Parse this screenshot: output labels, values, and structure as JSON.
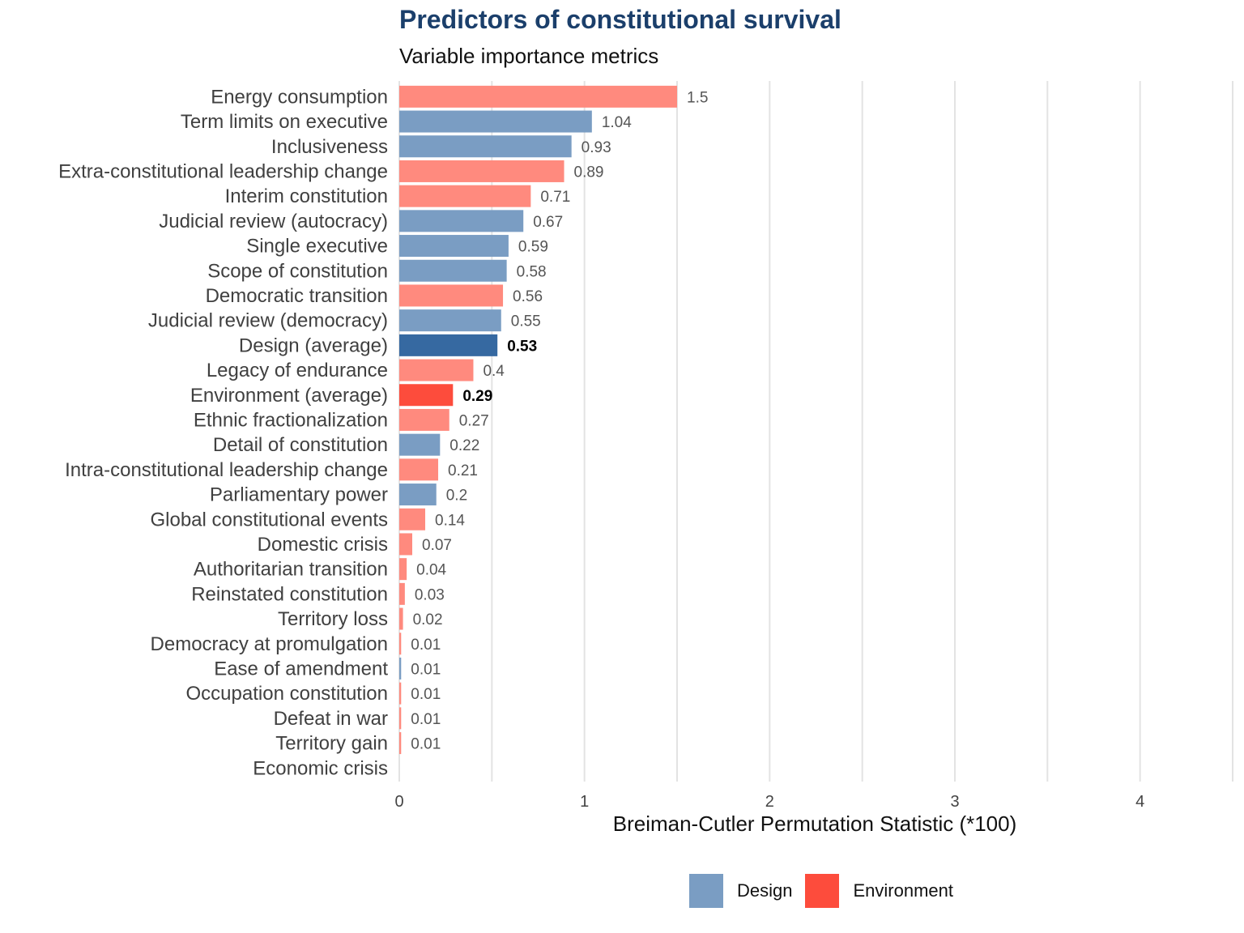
{
  "title": "Predictors of constitutional survival",
  "subtitle": "Variable importance metrics",
  "colors": {
    "design": "#7a9dc3",
    "design_highlight": "#3669a1",
    "environment": "#ff8a7e",
    "environment_highlight": "#fd4c3c",
    "grid": "#e3e3e3",
    "label": "#404040",
    "value_label": "#555555"
  },
  "legend": {
    "items": [
      {
        "label": "Design",
        "group": "design"
      },
      {
        "label": "Environment",
        "group": "environment"
      }
    ]
  },
  "chart_data": {
    "type": "bar",
    "orientation": "horizontal",
    "xlabel": "Breiman-Cutler Permutation Statistic (*100)",
    "xlim": [
      0,
      4.5
    ],
    "xticks": [
      0,
      1,
      2,
      3,
      4
    ],
    "grid": true,
    "legend_position": "bottom",
    "bars": [
      {
        "label": "Energy consumption",
        "value": 1.5,
        "value_label": "1.5",
        "group": "environment",
        "highlight": false
      },
      {
        "label": "Term limits on executive",
        "value": 1.04,
        "value_label": "1.04",
        "group": "design",
        "highlight": false
      },
      {
        "label": "Inclusiveness",
        "value": 0.93,
        "value_label": "0.93",
        "group": "design",
        "highlight": false
      },
      {
        "label": "Extra-constitutional leadership change",
        "value": 0.89,
        "value_label": "0.89",
        "group": "environment",
        "highlight": false
      },
      {
        "label": "Interim constitution",
        "value": 0.71,
        "value_label": "0.71",
        "group": "environment",
        "highlight": false
      },
      {
        "label": "Judicial review (autocracy)",
        "value": 0.67,
        "value_label": "0.67",
        "group": "design",
        "highlight": false
      },
      {
        "label": "Single executive",
        "value": 0.59,
        "value_label": "0.59",
        "group": "design",
        "highlight": false
      },
      {
        "label": "Scope of constitution",
        "value": 0.58,
        "value_label": "0.58",
        "group": "design",
        "highlight": false
      },
      {
        "label": "Democratic transition",
        "value": 0.56,
        "value_label": "0.56",
        "group": "environment",
        "highlight": false
      },
      {
        "label": "Judicial review (democracy)",
        "value": 0.55,
        "value_label": "0.55",
        "group": "design",
        "highlight": false
      },
      {
        "label": "Design (average)",
        "value": 0.53,
        "value_label": "0.53",
        "group": "design",
        "highlight": true
      },
      {
        "label": "Legacy of endurance",
        "value": 0.4,
        "value_label": "0.4",
        "group": "environment",
        "highlight": false
      },
      {
        "label": "Environment (average)",
        "value": 0.29,
        "value_label": "0.29",
        "group": "environment",
        "highlight": true
      },
      {
        "label": "Ethnic fractionalization",
        "value": 0.27,
        "value_label": "0.27",
        "group": "environment",
        "highlight": false
      },
      {
        "label": "Detail of constitution",
        "value": 0.22,
        "value_label": "0.22",
        "group": "design",
        "highlight": false
      },
      {
        "label": "Intra-constitutional leadership change",
        "value": 0.21,
        "value_label": "0.21",
        "group": "environment",
        "highlight": false
      },
      {
        "label": "Parliamentary power",
        "value": 0.2,
        "value_label": "0.2",
        "group": "design",
        "highlight": false
      },
      {
        "label": "Global constitutional events",
        "value": 0.14,
        "value_label": "0.14",
        "group": "environment",
        "highlight": false
      },
      {
        "label": "Domestic crisis",
        "value": 0.07,
        "value_label": "0.07",
        "group": "environment",
        "highlight": false
      },
      {
        "label": "Authoritarian transition",
        "value": 0.04,
        "value_label": "0.04",
        "group": "environment",
        "highlight": false
      },
      {
        "label": "Reinstated constitution",
        "value": 0.03,
        "value_label": "0.03",
        "group": "environment",
        "highlight": false
      },
      {
        "label": "Territory loss",
        "value": 0.02,
        "value_label": "0.02",
        "group": "environment",
        "highlight": false
      },
      {
        "label": "Democracy at promulgation",
        "value": 0.01,
        "value_label": "0.01",
        "group": "environment",
        "highlight": false
      },
      {
        "label": "Ease of amendment",
        "value": 0.01,
        "value_label": "0.01",
        "group": "design",
        "highlight": false
      },
      {
        "label": "Occupation constitution",
        "value": 0.01,
        "value_label": "0.01",
        "group": "environment",
        "highlight": false
      },
      {
        "label": "Defeat in war",
        "value": 0.01,
        "value_label": "0.01",
        "group": "environment",
        "highlight": false
      },
      {
        "label": "Territory gain",
        "value": 0.01,
        "value_label": "0.01",
        "group": "environment",
        "highlight": false
      },
      {
        "label": "Economic crisis",
        "value": 0,
        "value_label": "",
        "group": "environment",
        "highlight": false
      }
    ]
  }
}
